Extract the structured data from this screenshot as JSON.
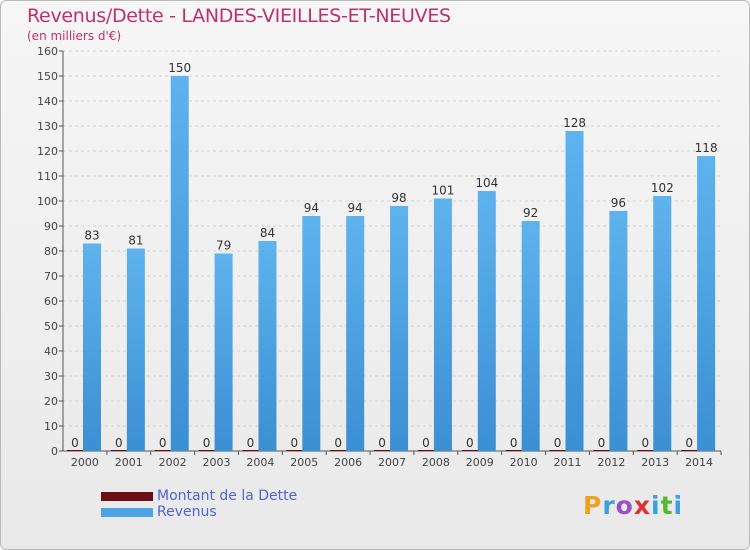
{
  "chart_data": {
    "type": "bar",
    "title": "Revenus/Dette - LANDES-VIEILLES-ET-NEUVES",
    "subtitle": "(en milliers d'€)",
    "categories": [
      "2000",
      "2001",
      "2002",
      "2003",
      "2004",
      "2005",
      "2006",
      "2007",
      "2008",
      "2009",
      "2010",
      "2011",
      "2012",
      "2013",
      "2014"
    ],
    "series": [
      {
        "name": "Montant de la Dette",
        "color": "#6b0f14",
        "values": [
          0,
          0,
          0,
          0,
          0,
          0,
          0,
          0,
          0,
          0,
          0,
          0,
          0,
          0,
          0
        ]
      },
      {
        "name": "Revenus",
        "color": "#4ea4e3",
        "values": [
          83,
          81,
          150,
          79,
          84,
          94,
          94,
          98,
          101,
          104,
          92,
          128,
          96,
          102,
          118
        ]
      }
    ],
    "ylim": [
      0,
      160
    ],
    "yticks": [
      0,
      10,
      20,
      30,
      40,
      50,
      60,
      70,
      80,
      90,
      100,
      110,
      120,
      130,
      140,
      150,
      160
    ],
    "grid": true,
    "legend_position": "bottom-left"
  },
  "logo": {
    "text": "Proxiti",
    "letters": [
      "P",
      "r",
      "o",
      "x",
      "i",
      "t",
      "i"
    ],
    "colors": [
      "#f0a020",
      "#3aa0e0",
      "#9c4fc8",
      "#e03030",
      "#3aa0e0",
      "#58b830",
      "#3aa0e0"
    ]
  }
}
